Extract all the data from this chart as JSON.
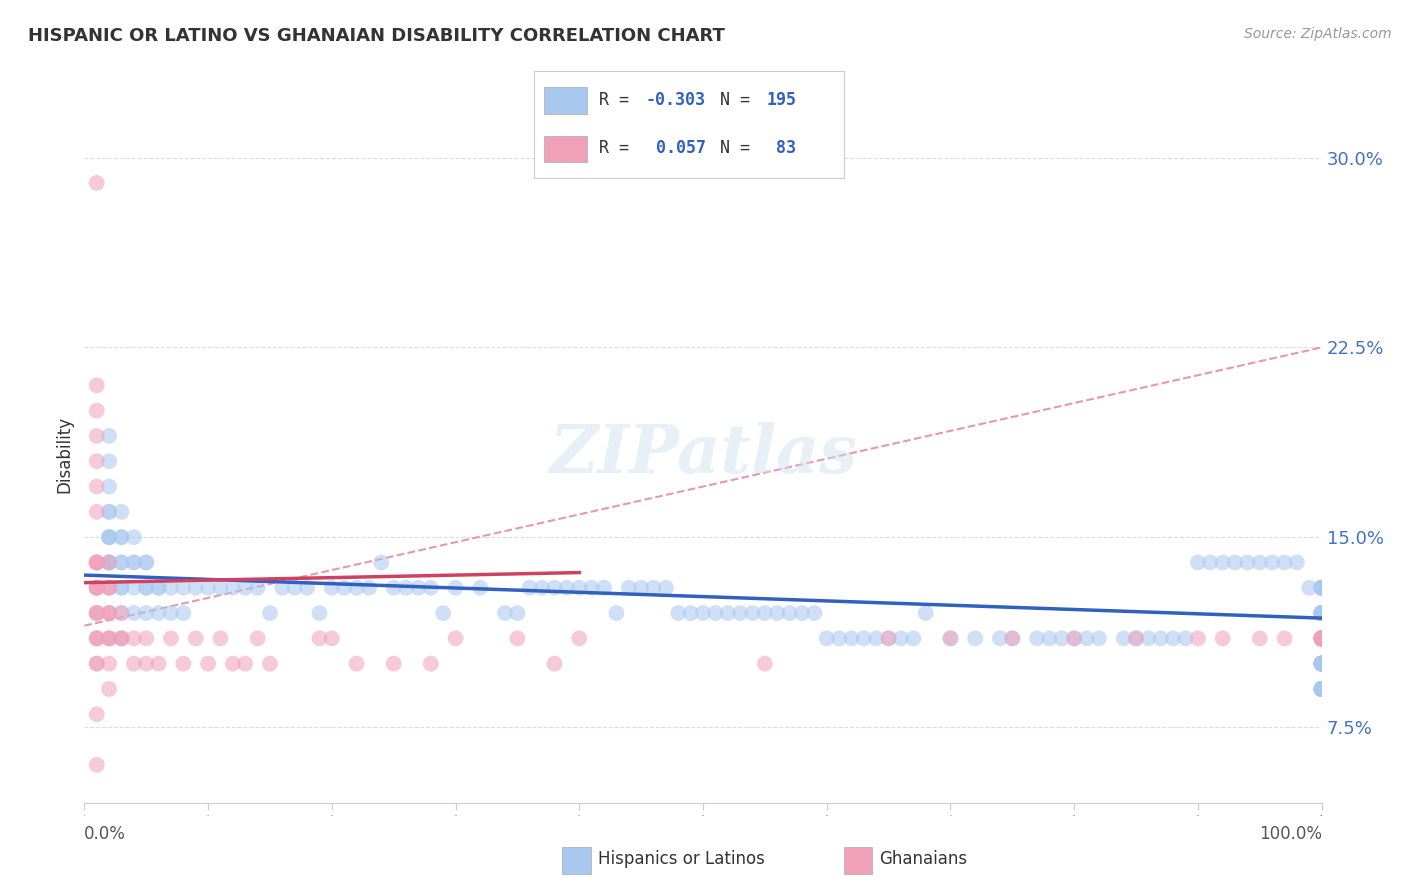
{
  "title": "HISPANIC OR LATINO VS GHANAIAN DISABILITY CORRELATION CHART",
  "source": "Source: ZipAtlas.com",
  "ylabel": "Disability",
  "yticks": [
    7.5,
    15.0,
    22.5,
    30.0
  ],
  "ytick_labels": [
    "7.5%",
    "15.0%",
    "22.5%",
    "30.0%"
  ],
  "xlim": [
    0,
    100
  ],
  "ylim": [
    4.5,
    32
  ],
  "color_blue": "#A8C8F0",
  "color_pink": "#F0A0B8",
  "color_blue_line": "#3060C0",
  "color_pink_line": "#D04060",
  "color_dashed": "#E08090",
  "label_blue": "Hispanics or Latinos",
  "label_pink": "Ghanaians",
  "background_color": "#FFFFFF",
  "grid_color": "#DDDDDD",
  "ytick_color": "#4472C4",
  "blue_scatter_x": [
    2,
    2,
    2,
    2,
    2,
    2,
    2,
    2,
    2,
    2,
    2,
    2,
    3,
    3,
    3,
    3,
    3,
    3,
    3,
    3,
    3,
    4,
    4,
    4,
    4,
    4,
    5,
    5,
    5,
    5,
    5,
    6,
    6,
    6,
    7,
    7,
    8,
    8,
    9,
    10,
    11,
    12,
    13,
    14,
    15,
    16,
    17,
    18,
    19,
    20,
    21,
    22,
    23,
    24,
    25,
    26,
    27,
    28,
    29,
    30,
    32,
    34,
    35,
    36,
    37,
    38,
    39,
    40,
    41,
    42,
    43,
    44,
    45,
    46,
    47,
    48,
    49,
    50,
    51,
    52,
    53,
    54,
    55,
    56,
    57,
    58,
    59,
    60,
    61,
    62,
    63,
    64,
    65,
    66,
    67,
    68,
    70,
    72,
    74,
    75,
    77,
    78,
    79,
    80,
    81,
    82,
    84,
    85,
    86,
    87,
    88,
    89,
    90,
    91,
    92,
    93,
    94,
    95,
    96,
    97,
    98,
    99,
    100,
    100,
    100,
    100,
    100,
    100,
    100,
    100,
    100,
    100,
    100,
    100,
    100,
    100,
    100,
    100,
    100,
    100,
    100,
    100,
    100,
    100,
    100,
    100,
    100,
    100,
    100,
    100,
    100,
    100,
    100,
    100,
    100,
    100,
    100,
    100,
    100,
    100,
    100,
    100,
    100,
    100,
    100,
    100,
    100,
    100,
    100,
    100,
    100,
    100,
    100,
    100,
    100,
    100,
    100,
    100,
    100,
    100,
    100,
    100,
    100,
    100,
    100,
    100,
    100,
    100,
    100,
    100,
    100,
    100,
    100,
    100,
    100
  ],
  "blue_scatter_y": [
    13,
    14,
    14,
    14,
    15,
    15,
    15,
    16,
    16,
    17,
    18,
    19,
    11,
    12,
    13,
    13,
    14,
    14,
    15,
    15,
    16,
    12,
    13,
    14,
    14,
    15,
    12,
    13,
    13,
    14,
    14,
    12,
    13,
    13,
    12,
    13,
    12,
    13,
    13,
    13,
    13,
    13,
    13,
    13,
    12,
    13,
    13,
    13,
    12,
    13,
    13,
    13,
    13,
    14,
    13,
    13,
    13,
    13,
    12,
    13,
    13,
    12,
    12,
    13,
    13,
    13,
    13,
    13,
    13,
    13,
    12,
    13,
    13,
    13,
    13,
    12,
    12,
    12,
    12,
    12,
    12,
    12,
    12,
    12,
    12,
    12,
    12,
    11,
    11,
    11,
    11,
    11,
    11,
    11,
    11,
    12,
    11,
    11,
    11,
    11,
    11,
    11,
    11,
    11,
    11,
    11,
    11,
    11,
    11,
    11,
    11,
    11,
    14,
    14,
    14,
    14,
    14,
    14,
    14,
    14,
    14,
    13,
    13,
    13,
    13,
    13,
    13,
    13,
    13,
    12,
    12,
    12,
    12,
    12,
    12,
    12,
    12,
    12,
    12,
    12,
    12,
    12,
    12,
    12,
    12,
    11,
    11,
    11,
    11,
    11,
    11,
    11,
    11,
    11,
    11,
    11,
    11,
    11,
    11,
    11,
    11,
    11,
    10,
    10,
    10,
    10,
    10,
    10,
    10,
    10,
    10,
    10,
    10,
    10,
    10,
    10,
    10,
    10,
    10,
    9,
    9,
    9,
    9,
    9,
    9,
    9,
    9,
    9,
    9,
    9,
    9,
    9,
    9,
    9,
    9
  ],
  "pink_scatter_x": [
    1,
    1,
    1,
    1,
    1,
    1,
    1,
    1,
    1,
    1,
    1,
    1,
    1,
    1,
    1,
    1,
    1,
    1,
    1,
    1,
    1,
    1,
    1,
    1,
    1,
    2,
    2,
    2,
    2,
    2,
    2,
    2,
    2,
    2,
    2,
    2,
    3,
    3,
    3,
    4,
    4,
    5,
    5,
    6,
    7,
    8,
    9,
    10,
    11,
    12,
    13,
    14,
    15,
    19,
    20,
    22,
    25,
    28,
    30,
    35,
    38,
    40,
    55,
    65,
    70,
    75,
    80,
    85,
    90,
    92,
    95,
    97,
    100,
    100,
    100,
    100,
    100,
    100,
    100,
    100,
    100,
    100,
    100
  ],
  "pink_scatter_y": [
    29,
    21,
    20,
    19,
    18,
    17,
    16,
    14,
    14,
    14,
    14,
    13,
    13,
    13,
    13,
    12,
    12,
    12,
    11,
    11,
    11,
    10,
    10,
    8,
    6,
    14,
    13,
    13,
    12,
    12,
    12,
    11,
    11,
    11,
    10,
    9,
    12,
    11,
    11,
    11,
    10,
    11,
    10,
    10,
    11,
    10,
    11,
    10,
    11,
    10,
    10,
    11,
    10,
    11,
    11,
    10,
    10,
    10,
    11,
    11,
    10,
    11,
    10,
    11,
    11,
    11,
    11,
    11,
    11,
    11,
    11,
    11,
    11,
    11,
    11,
    11,
    11,
    11,
    11,
    11,
    11,
    11,
    11
  ],
  "blue_trend_x": [
    0,
    100
  ],
  "blue_trend_y": [
    13.5,
    11.8
  ],
  "pink_trend_x": [
    0,
    40
  ],
  "pink_trend_y": [
    13.2,
    13.6
  ],
  "dashed_line_x": [
    0,
    100
  ],
  "dashed_line_y": [
    11.5,
    22.5
  ]
}
